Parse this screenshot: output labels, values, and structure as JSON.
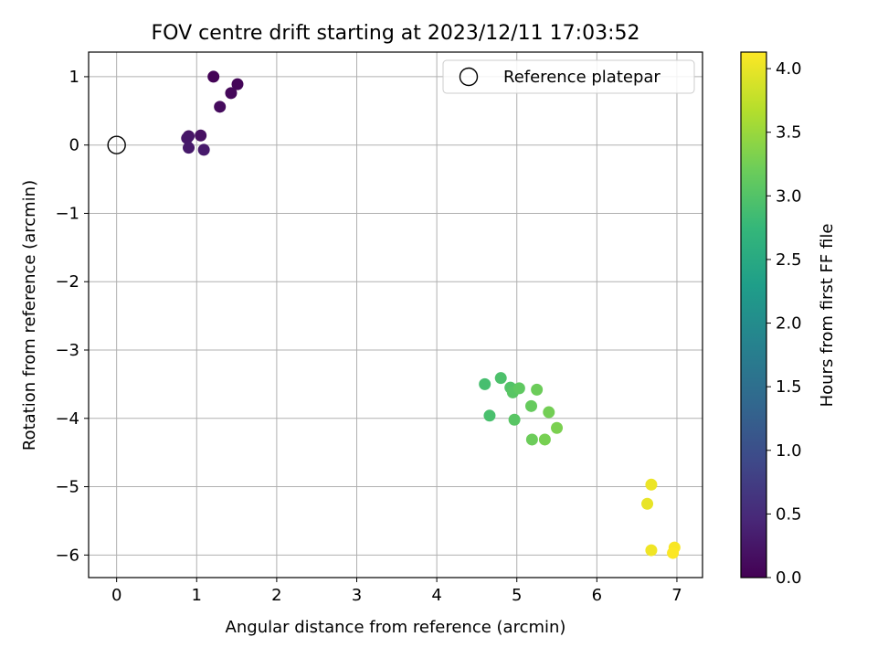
{
  "chart_data": {
    "type": "scatter",
    "title": "FOV centre drift starting at 2023/12/11 17:03:52",
    "xlabel": "Angular distance from reference (arcmin)",
    "ylabel": "Rotation from reference (arcmin)",
    "xlim": [
      -0.35,
      7.32
    ],
    "ylim": [
      -6.33,
      1.36
    ],
    "xticks": [
      0,
      1,
      2,
      3,
      4,
      5,
      6,
      7
    ],
    "xtick_labels": [
      "0",
      "1",
      "2",
      "3",
      "4",
      "5",
      "6",
      "7"
    ],
    "yticks": [
      1,
      0,
      -1,
      -2,
      -3,
      -4,
      -5,
      -6
    ],
    "ytick_labels": [
      "1",
      "0",
      "−1",
      "−2",
      "−3",
      "−4",
      "−5",
      "−6"
    ],
    "grid": true,
    "legend": {
      "position": "upper-right",
      "label": "Reference platepar"
    },
    "reference_point": {
      "x": 0,
      "y": 0
    },
    "colorbar": {
      "label": "Hours from first FF file",
      "range": [
        0,
        4.13
      ],
      "ticks": [
        0.0,
        0.5,
        1.0,
        1.5,
        2.0,
        2.5,
        3.0,
        3.5,
        4.0
      ],
      "tick_labels": [
        "0.0",
        "0.5",
        "1.0",
        "1.5",
        "2.0",
        "2.5",
        "3.0",
        "3.5",
        "4.0"
      ],
      "colormap": "viridis"
    },
    "points": [
      {
        "x": 1.21,
        "y": 1.0,
        "c": 0.02
      },
      {
        "x": 1.51,
        "y": 0.89,
        "c": 0.05
      },
      {
        "x": 1.43,
        "y": 0.76,
        "c": 0.08
      },
      {
        "x": 1.29,
        "y": 0.56,
        "c": 0.12
      },
      {
        "x": 1.05,
        "y": 0.14,
        "c": 0.18
      },
      {
        "x": 0.9,
        "y": 0.13,
        "c": 0.22
      },
      {
        "x": 0.88,
        "y": 0.1,
        "c": 0.25
      },
      {
        "x": 0.9,
        "y": -0.04,
        "c": 0.28
      },
      {
        "x": 1.09,
        "y": -0.07,
        "c": 0.3
      },
      {
        "x": 4.6,
        "y": -3.5,
        "c": 2.9
      },
      {
        "x": 4.8,
        "y": -3.41,
        "c": 2.95
      },
      {
        "x": 4.92,
        "y": -3.55,
        "c": 3.0
      },
      {
        "x": 4.95,
        "y": -3.62,
        "c": 3.05
      },
      {
        "x": 5.03,
        "y": -3.56,
        "c": 3.1
      },
      {
        "x": 5.25,
        "y": -3.58,
        "c": 3.2
      },
      {
        "x": 5.18,
        "y": -3.82,
        "c": 3.15
      },
      {
        "x": 4.66,
        "y": -3.96,
        "c": 2.92
      },
      {
        "x": 4.97,
        "y": -4.02,
        "c": 3.05
      },
      {
        "x": 5.4,
        "y": -3.91,
        "c": 3.25
      },
      {
        "x": 5.5,
        "y": -4.14,
        "c": 3.3
      },
      {
        "x": 5.19,
        "y": -4.31,
        "c": 3.2
      },
      {
        "x": 5.35,
        "y": -4.31,
        "c": 3.28
      },
      {
        "x": 6.68,
        "y": -4.97,
        "c": 4.02
      },
      {
        "x": 6.63,
        "y": -5.25,
        "c": 4.0
      },
      {
        "x": 6.68,
        "y": -5.93,
        "c": 4.05
      },
      {
        "x": 6.97,
        "y": -5.89,
        "c": 4.1
      },
      {
        "x": 6.95,
        "y": -5.97,
        "c": 4.12
      }
    ]
  }
}
